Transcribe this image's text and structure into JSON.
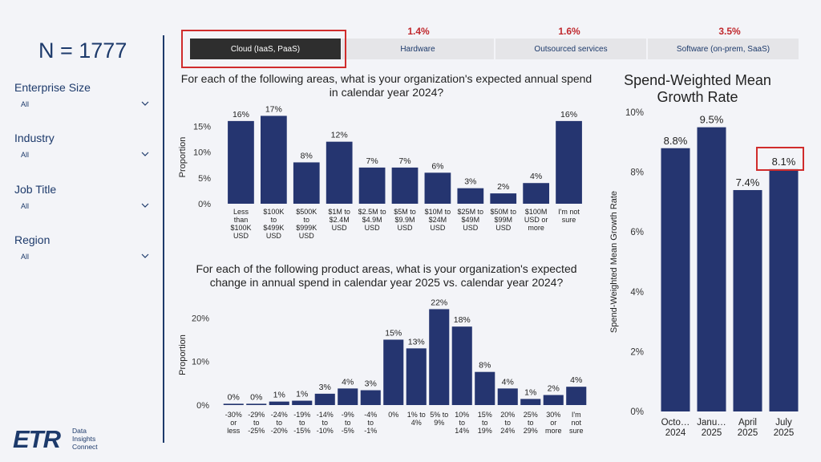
{
  "sample": {
    "label": "N = 1777"
  },
  "filters": [
    {
      "label": "Enterprise Size",
      "value": "All"
    },
    {
      "label": "Industry",
      "value": "All"
    },
    {
      "label": "Job Title",
      "value": "All"
    },
    {
      "label": "Region",
      "value": "All"
    }
  ],
  "logo": {
    "mark": "ETR",
    "text": [
      "Data",
      "Insights",
      "Connect"
    ]
  },
  "tabs": [
    {
      "label": "Cloud (IaaS, PaaS)",
      "pct": "",
      "active": true
    },
    {
      "label": "Hardware",
      "pct": "1.4%",
      "active": false
    },
    {
      "label": "Outsourced services",
      "pct": "1.6%",
      "active": false
    },
    {
      "label": "Software (on-prem, SaaS)",
      "pct": "3.5%",
      "active": false
    }
  ],
  "colors": {
    "bar": "#253570",
    "accent": "#d02c2c",
    "text": "#1d3a6b",
    "active_tab": "#2e2e2e"
  },
  "chart_data": [
    {
      "type": "bar",
      "title": "For each of the following areas, what is your organization's expected annual spend in calendar year 2024?",
      "ylabel": "Proportion",
      "ylim": [
        0,
        18
      ],
      "yticks": [
        0,
        5,
        10,
        15
      ],
      "ytick_labels": [
        "0%",
        "5%",
        "10%",
        "15%"
      ],
      "categories": [
        [
          "Less",
          "than",
          "$100K",
          "USD"
        ],
        [
          "$100K",
          "to",
          "$499K",
          "USD"
        ],
        [
          "$500K",
          "to",
          "$999K",
          "USD"
        ],
        [
          "$1M to",
          "$2.4M",
          "USD"
        ],
        [
          "$2.5M to",
          "$4.9M",
          "USD"
        ],
        [
          "$5M to",
          "$9.9M",
          "USD"
        ],
        [
          "$10M to",
          "$24M",
          "USD"
        ],
        [
          "$25M to",
          "$49M",
          "USD"
        ],
        [
          "$50M to",
          "$99M",
          "USD"
        ],
        [
          "$100M",
          "USD or",
          "more"
        ],
        [
          "I'm not",
          "sure"
        ]
      ],
      "values": [
        16,
        17,
        8,
        12,
        7,
        7,
        6,
        3,
        2,
        4,
        16
      ],
      "labels": [
        "16%",
        "17%",
        "8%",
        "12%",
        "7%",
        "7%",
        "6%",
        "3%",
        "2%",
        "4%",
        "16%"
      ]
    },
    {
      "type": "bar",
      "title": "For each of the following product areas, what is your organization's expected change in annual spend in calendar year 2025 vs. calendar year 2024?",
      "ylabel": "Proportion",
      "ylim": [
        0,
        23
      ],
      "yticks": [
        0,
        10,
        20
      ],
      "ytick_labels": [
        "0%",
        "10%",
        "20%"
      ],
      "categories": [
        [
          "-30%",
          "or",
          "less"
        ],
        [
          "-29%",
          "to",
          "-25%"
        ],
        [
          "-24%",
          "to",
          "-20%"
        ],
        [
          "-19%",
          "to",
          "-15%"
        ],
        [
          "-14%",
          "to",
          "-10%"
        ],
        [
          "-9%",
          "to",
          "-5%"
        ],
        [
          "-4%",
          "to",
          "-1%"
        ],
        [
          "0%"
        ],
        [
          "1% to",
          "4%"
        ],
        [
          "5% to",
          "9%"
        ],
        [
          "10%",
          "to",
          "14%"
        ],
        [
          "15%",
          "to",
          "19%"
        ],
        [
          "20%",
          "to",
          "24%"
        ],
        [
          "25%",
          "to",
          "29%"
        ],
        [
          "30%",
          "or",
          "more"
        ],
        [
          "I'm",
          "not",
          "sure"
        ]
      ],
      "values": [
        0.3,
        0.3,
        0.8,
        1,
        2.6,
        3.8,
        3.4,
        15,
        13,
        22,
        18,
        7.6,
        3.8,
        1.4,
        2.3,
        4.2
      ],
      "labels": [
        "0%",
        "0%",
        "1%",
        "1%",
        "3%",
        "4%",
        "3%",
        "15%",
        "13%",
        "22%",
        "18%",
        "8%",
        "4%",
        "1%",
        "2%",
        "4%"
      ]
    },
    {
      "type": "bar",
      "title": "Spend-Weighted Mean Growth Rate",
      "ylabel": "Spend-Weighted Mean Growth Rate",
      "ylim": [
        0,
        10
      ],
      "yticks": [
        0,
        2,
        4,
        6,
        8,
        10
      ],
      "ytick_labels": [
        "0%",
        "2%",
        "4%",
        "6%",
        "8%",
        "10%"
      ],
      "categories": [
        [
          "Octo…",
          "2024"
        ],
        [
          "Janu…",
          "2025"
        ],
        [
          "April",
          "2025"
        ],
        [
          "July",
          "2025"
        ]
      ],
      "values": [
        8.8,
        9.5,
        7.4,
        8.1
      ],
      "labels": [
        "8.8%",
        "9.5%",
        "7.4%",
        "8.1%"
      ]
    }
  ]
}
